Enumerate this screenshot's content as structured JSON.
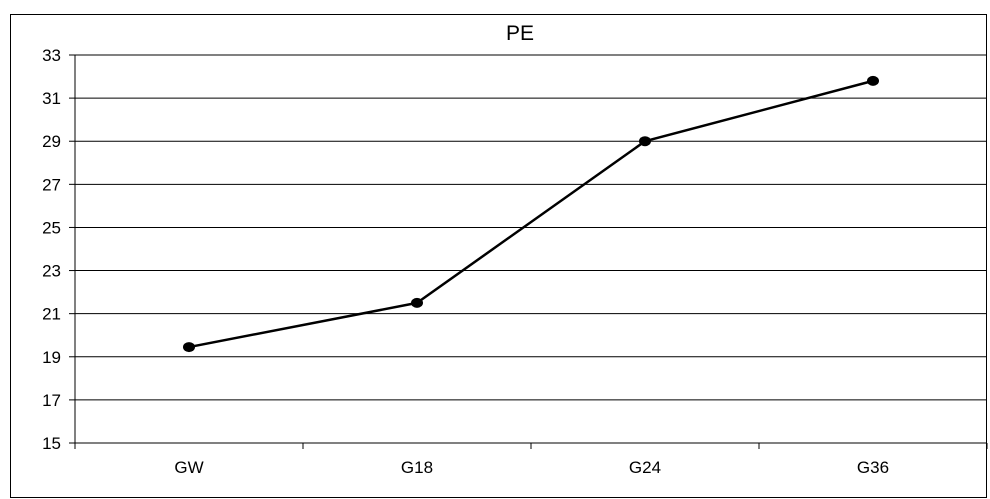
{
  "chart_data": {
    "type": "line",
    "title": "PE",
    "xlabel": "",
    "ylabel": "",
    "categories": [
      "GW",
      "G18",
      "G24",
      "G36"
    ],
    "series": [
      {
        "values": [
          19.45,
          21.5,
          29.0,
          31.8
        ]
      }
    ],
    "ylim": [
      15,
      33
    ],
    "yticks": [
      15,
      17,
      19,
      21,
      23,
      25,
      27,
      29,
      31,
      33
    ],
    "ytick_labels": [
      "15",
      "17",
      "19",
      "21",
      "23",
      "25",
      "27",
      "29",
      "31",
      "33"
    ],
    "grid": "horizontal",
    "legend": "none",
    "line_color": "#000000",
    "marker": "circle"
  }
}
